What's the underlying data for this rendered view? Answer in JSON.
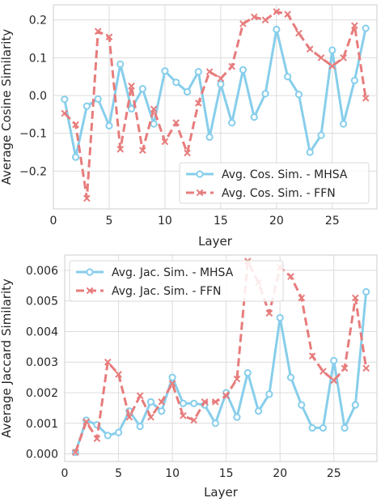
{
  "chart_data": [
    {
      "type": "line",
      "title": "",
      "xlabel": "Layer",
      "ylabel": "Average Cosine Similarity",
      "xlim": [
        0,
        29
      ],
      "ylim": [
        -0.3,
        0.24
      ],
      "x_ticks": [
        0,
        5,
        10,
        15,
        20,
        25
      ],
      "y_ticks": [
        -0.2,
        -0.1,
        0.0,
        0.1,
        0.2
      ],
      "y_tick_labels": [
        "−0.2",
        "−0.1",
        "0.0",
        "0.1",
        "0.2"
      ],
      "grid": true,
      "legend_position": "lower-right",
      "x": [
        1,
        2,
        3,
        4,
        5,
        6,
        7,
        8,
        9,
        10,
        11,
        12,
        13,
        14,
        15,
        16,
        17,
        18,
        19,
        20,
        21,
        22,
        23,
        24,
        25,
        26,
        27,
        28
      ],
      "series": [
        {
          "name": "Avg. Cos. Sim. - MHSA",
          "color": "#87ceeb",
          "marker": "circle",
          "line": "solid",
          "values": [
            -0.01,
            -0.163,
            -0.028,
            -0.009,
            -0.08,
            0.083,
            -0.035,
            0.018,
            -0.075,
            0.065,
            0.035,
            0.01,
            0.063,
            -0.11,
            0.03,
            -0.072,
            0.068,
            -0.057,
            0.005,
            0.175,
            0.05,
            0.003,
            -0.15,
            -0.105,
            0.12,
            -0.075,
            0.04,
            0.178
          ]
        },
        {
          "name": "Avg. Cos. Sim. - FFN",
          "color": "#e77c7c",
          "marker": "x",
          "line": "dashed",
          "values": [
            -0.047,
            -0.077,
            -0.272,
            0.17,
            0.155,
            -0.142,
            0.025,
            -0.145,
            -0.036,
            -0.122,
            -0.072,
            -0.152,
            -0.02,
            0.063,
            0.045,
            0.077,
            0.19,
            0.208,
            0.2,
            0.222,
            0.215,
            0.165,
            0.123,
            0.1,
            0.078,
            0.1,
            0.185,
            -0.007
          ]
        }
      ]
    },
    {
      "type": "line",
      "title": "",
      "xlabel": "Layer",
      "ylabel": "Average Jaccard Similarity",
      "xlim": [
        0,
        29
      ],
      "ylim": [
        -0.00025,
        0.0065
      ],
      "x_ticks": [
        0,
        5,
        10,
        15,
        20,
        25
      ],
      "y_ticks": [
        0.0,
        0.001,
        0.002,
        0.003,
        0.004,
        0.005,
        0.006
      ],
      "y_tick_labels": [
        "0.000",
        "0.001",
        "0.002",
        "0.003",
        "0.004",
        "0.005",
        "0.006"
      ],
      "grid": true,
      "legend_position": "top-left",
      "x": [
        1,
        2,
        3,
        4,
        5,
        6,
        7,
        8,
        9,
        10,
        11,
        12,
        13,
        14,
        15,
        16,
        17,
        18,
        19,
        20,
        21,
        22,
        23,
        24,
        25,
        26,
        27,
        28
      ],
      "series": [
        {
          "name": "Avg. Jac. Sim. - MHSA",
          "color": "#87ceeb",
          "marker": "circle",
          "line": "solid",
          "values": [
            5e-05,
            0.0011,
            0.00095,
            0.0006,
            0.0007,
            0.0014,
            0.0009,
            0.0017,
            0.0014,
            0.0025,
            0.00165,
            0.00165,
            0.0016,
            0.001,
            0.002,
            0.0012,
            0.00265,
            0.0014,
            0.00195,
            0.00445,
            0.0025,
            0.0016,
            0.00085,
            0.00085,
            0.00305,
            0.00085,
            0.0016,
            0.0053
          ]
        },
        {
          "name": "Avg. Jac. Sim. - FFN",
          "color": "#e77c7c",
          "marker": "x",
          "line": "dashed",
          "values": [
            5e-05,
            0.00105,
            0.0005,
            0.003,
            0.0026,
            0.0012,
            0.0019,
            0.0012,
            0.0017,
            0.0023,
            0.00125,
            0.0011,
            0.0017,
            0.0017,
            0.0019,
            0.00245,
            0.0063,
            0.0056,
            0.0046,
            0.0061,
            0.0058,
            0.0051,
            0.0032,
            0.0027,
            0.0024,
            0.0028,
            0.0051,
            0.0028
          ]
        }
      ]
    }
  ]
}
